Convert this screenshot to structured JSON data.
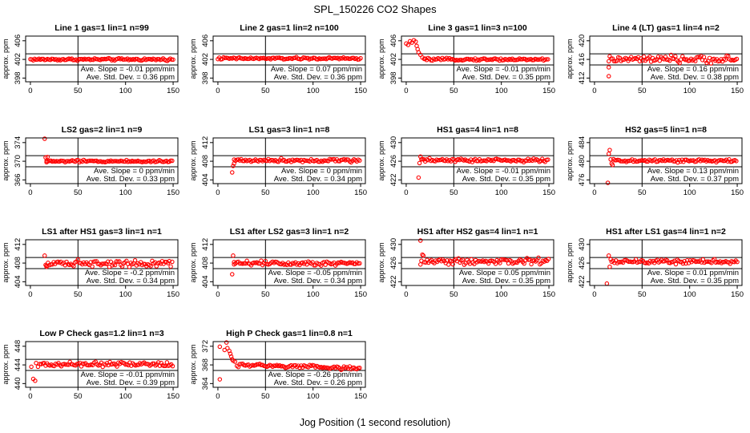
{
  "figure": {
    "title": "SPL_150226  CO2 Shapes",
    "xlabel": "Jog Position (1 second resolution)"
  },
  "colors": {
    "points": "#ff0000",
    "axes": "#000000",
    "background": "#ffffff"
  },
  "chart_data": [
    {
      "type": "scatter",
      "title": "Line 1 gas=1 lin=1 n=99",
      "ylabel": "approx. ppm",
      "xticks": [
        0,
        50,
        100,
        150
      ],
      "yticks": [
        398,
        402,
        406
      ],
      "ylim": [
        397.2,
        407
      ],
      "hlines": [
        403.2,
        400.8
      ],
      "vline": 50,
      "stats": [
        "Ave. Slope = -0.01  ppm/min",
        "Ave. Std. Dev. = 0.36  ppm"
      ],
      "points": {
        "start": 0,
        "end": 150,
        "step": 1.5,
        "base": 402.0,
        "noise": 0.12
      },
      "early": []
    },
    {
      "type": "scatter",
      "title": "Line 2 gas=1 lin=2 n=100",
      "ylabel": "approx. ppm",
      "xticks": [
        0,
        50,
        100,
        150
      ],
      "yticks": [
        398,
        402,
        406
      ],
      "ylim": [
        397.2,
        407
      ],
      "hlines": [
        403.2,
        400.8
      ],
      "vline": 50,
      "stats": [
        "Ave. Slope = 0.07  ppm/min",
        "Ave. Std. Dev. = 0.36  ppm"
      ],
      "points": {
        "start": 0,
        "end": 150,
        "step": 1.5,
        "base": 402.2,
        "noise": 0.12
      },
      "early": []
    },
    {
      "type": "scatter",
      "title": "Line 3 gas=1 lin=3 n=100",
      "ylabel": "approx. ppm",
      "xticks": [
        0,
        50,
        100,
        150
      ],
      "yticks": [
        398,
        402,
        406
      ],
      "ylim": [
        397.2,
        407
      ],
      "hlines": [
        403.2,
        400.8
      ],
      "vline": 50,
      "stats": [
        "Ave. Slope = -0.01  ppm/min",
        "Ave. Std. Dev. = 0.35  ppm"
      ],
      "points": {
        "start": 20,
        "end": 150,
        "step": 1.5,
        "base": 402.0,
        "noise": 0.12
      },
      "early": [
        [
          0,
          405.4
        ],
        [
          2,
          405.1
        ],
        [
          4,
          405.9
        ],
        [
          6,
          405.6
        ],
        [
          8,
          406.1
        ],
        [
          10,
          405.8
        ],
        [
          11,
          404.9
        ],
        [
          12,
          404.2
        ],
        [
          13,
          403.5
        ],
        [
          15,
          403.0
        ],
        [
          17,
          402.4
        ],
        [
          19,
          402.1
        ]
      ]
    },
    {
      "type": "scatter",
      "title": "Line 4 (LT) gas=1 lin=4 n=2",
      "ylabel": "approx. ppm",
      "xticks": [
        0,
        50,
        100,
        150
      ],
      "yticks": [
        412,
        416,
        420
      ],
      "ylim": [
        411.2,
        421
      ],
      "hlines": [
        417.2,
        414.8
      ],
      "vline": 50,
      "stats": [
        "Ave. Slope = 0.16  ppm/min",
        "Ave. Std. Dev. = 0.38  ppm"
      ],
      "points": {
        "start": 16,
        "end": 150,
        "step": 1.5,
        "base": 416.0,
        "noise": 0.35
      },
      "early": [
        [
          15,
          412.4
        ],
        [
          15,
          414.3
        ],
        [
          15,
          415.6
        ]
      ]
    },
    {
      "type": "scatter",
      "title": "LS2 gas=2 lin=1 n=9",
      "ylabel": "approx. ppm",
      "xticks": [
        0,
        50,
        100,
        150
      ],
      "yticks": [
        366,
        370,
        374
      ],
      "ylim": [
        365.2,
        375
      ],
      "hlines": [
        371.2,
        368.8
      ],
      "vline": 50,
      "stats": [
        "Ave. Slope = 0  ppm/min",
        "Ave. Std. Dev. = 0.33  ppm"
      ],
      "points": {
        "start": 17,
        "end": 150,
        "step": 1.5,
        "base": 370.0,
        "noise": 0.12
      },
      "early": [
        [
          15,
          375.0
        ],
        [
          16,
          370.8
        ],
        [
          17,
          369.8
        ],
        [
          18,
          370.9
        ]
      ]
    },
    {
      "type": "scatter",
      "title": "LS1 gas=3 lin=1 n=8",
      "ylabel": "approx. ppm",
      "xticks": [
        0,
        50,
        100,
        150
      ],
      "yticks": [
        404,
        408,
        412
      ],
      "ylim": [
        403.2,
        413
      ],
      "hlines": [
        409.2,
        406.8
      ],
      "vline": 50,
      "stats": [
        "Ave. Slope = 0  ppm/min",
        "Ave. Std. Dev. = 0.34  ppm"
      ],
      "points": {
        "start": 17,
        "end": 150,
        "step": 1.5,
        "base": 408.2,
        "noise": 0.18
      },
      "early": [
        [
          15,
          405.6
        ],
        [
          16,
          407.0
        ],
        [
          17,
          407.5
        ]
      ]
    },
    {
      "type": "scatter",
      "title": "HS1 gas=4 lin=1 n=8",
      "ylabel": "approx. ppm",
      "xticks": [
        0,
        50,
        100,
        150
      ],
      "yticks": [
        422,
        426,
        430
      ],
      "ylim": [
        421.2,
        431
      ],
      "hlines": [
        427.2,
        424.8
      ],
      "vline": 50,
      "stats": [
        "Ave. Slope = -0.01  ppm/min",
        "Ave. Std. Dev. = 0.35  ppm"
      ],
      "points": {
        "start": 17,
        "end": 150,
        "step": 1.5,
        "base": 426.2,
        "noise": 0.18
      },
      "early": [
        [
          13,
          422.5
        ],
        [
          14,
          425.6
        ],
        [
          15,
          427.0
        ],
        [
          16,
          426.4
        ]
      ]
    },
    {
      "type": "scatter",
      "title": "HS2 gas=5 lin=1 n=8",
      "ylabel": "approx. ppm",
      "xticks": [
        0,
        50,
        100,
        150
      ],
      "yticks": [
        476,
        480,
        484
      ],
      "ylim": [
        475.2,
        485
      ],
      "hlines": [
        481.2,
        478.8
      ],
      "vline": 50,
      "stats": [
        "Ave. Slope = 0.13  ppm/min",
        "Ave. Std. Dev. = 0.37  ppm"
      ],
      "points": {
        "start": 20,
        "end": 150,
        "step": 1.5,
        "base": 480.1,
        "noise": 0.18
      },
      "early": [
        [
          14,
          475.1
        ],
        [
          15,
          481.6
        ],
        [
          16,
          482.4
        ],
        [
          17,
          480.4
        ],
        [
          18,
          479.5
        ],
        [
          19,
          479.2
        ]
      ]
    },
    {
      "type": "scatter",
      "title": "LS1 after HS1 gas=3 lin=1 n=1",
      "ylabel": "approx. ppm",
      "xticks": [
        0,
        50,
        100,
        150
      ],
      "yticks": [
        404,
        408,
        412
      ],
      "ylim": [
        403.2,
        413
      ],
      "hlines": [
        409.2,
        406.8
      ],
      "vline": 50,
      "stats": [
        "Ave. Slope = -0.2  ppm/min",
        "Ave. Std. Dev. = 0.34  ppm"
      ],
      "points": {
        "start": 17,
        "end": 150,
        "step": 1.5,
        "base": 408.0,
        "noise": 0.35
      },
      "early": [
        [
          15,
          409.6
        ],
        [
          16,
          407.6
        ],
        [
          17,
          407.2
        ]
      ]
    },
    {
      "type": "scatter",
      "title": "LS1 after LS2 gas=3 lin=1 n=2",
      "ylabel": "approx. ppm",
      "xticks": [
        0,
        50,
        100,
        150
      ],
      "yticks": [
        404,
        408,
        412
      ],
      "ylim": [
        403.2,
        413
      ],
      "hlines": [
        409.2,
        406.8
      ],
      "vline": 50,
      "stats": [
        "Ave. Slope = -0.05  ppm/min",
        "Ave. Std. Dev. = 0.34  ppm"
      ],
      "points": {
        "start": 17,
        "end": 150,
        "step": 1.5,
        "base": 408.0,
        "noise": 0.25
      },
      "early": [
        [
          15,
          405.6
        ],
        [
          16,
          409.6
        ],
        [
          17,
          408.2
        ]
      ]
    },
    {
      "type": "scatter",
      "title": "HS1 after HS2 gas=4 lin=1 n=1",
      "ylabel": "approx. ppm",
      "xticks": [
        0,
        50,
        100,
        150
      ],
      "yticks": [
        422,
        426,
        430
      ],
      "ylim": [
        421.2,
        431
      ],
      "hlines": [
        427.2,
        424.8
      ],
      "vline": 50,
      "stats": [
        "Ave. Slope = 0.05  ppm/min",
        "Ave. Std. Dev. = 0.35  ppm"
      ],
      "points": {
        "start": 19,
        "end": 150,
        "step": 1.5,
        "base": 426.4,
        "noise": 0.35
      },
      "early": [
        [
          15,
          431.0
        ],
        [
          15,
          425.7
        ],
        [
          16,
          426.5
        ],
        [
          17,
          427.8
        ],
        [
          18,
          427.6
        ]
      ]
    },
    {
      "type": "scatter",
      "title": "HS1 after LS1 gas=4 lin=1 n=2",
      "ylabel": "approx. ppm",
      "xticks": [
        0,
        50,
        100,
        150
      ],
      "yticks": [
        422,
        426,
        430
      ],
      "ylim": [
        421.2,
        431
      ],
      "hlines": [
        427.2,
        424.8
      ],
      "vline": 50,
      "stats": [
        "Ave. Slope = 0.01  ppm/min",
        "Ave. Std. Dev. = 0.35  ppm"
      ],
      "points": {
        "start": 18,
        "end": 150,
        "step": 1.5,
        "base": 426.3,
        "noise": 0.22
      },
      "early": [
        [
          13,
          421.6
        ],
        [
          15,
          427.6
        ],
        [
          16,
          425.2
        ],
        [
          17,
          426.8
        ]
      ]
    },
    {
      "type": "scatter",
      "title": "Low P Check gas=1.2 lin=1 n=3",
      "ylabel": "approx. ppm",
      "xticks": [
        0,
        50,
        100,
        150
      ],
      "yticks": [
        440,
        444,
        448
      ],
      "ylim": [
        439.2,
        449
      ],
      "hlines": [
        445.2,
        442.8
      ],
      "vline": 50,
      "stats": [
        "Ave. Slope = -0.01  ppm/min",
        "Ave. Std. Dev. = 0.39  ppm"
      ],
      "points": {
        "start": 10,
        "end": 150,
        "step": 1.5,
        "base": 444.1,
        "noise": 0.25
      },
      "early": [
        [
          1,
          443.6
        ],
        [
          3,
          441.0
        ],
        [
          5,
          440.6
        ],
        [
          6,
          444.4
        ],
        [
          8,
          443.6
        ]
      ]
    },
    {
      "type": "scatter",
      "title": "High P Check gas=1 lin=0.8 n=1",
      "ylabel": "approx. ppm",
      "xticks": [
        0,
        50,
        100,
        150
      ],
      "yticks": [
        364,
        368,
        372
      ],
      "ylim": [
        363.2,
        373
      ],
      "hlines": [
        369.2,
        366.8
      ],
      "vline": 50,
      "stats": [
        "Ave. Slope = -0.26  ppm/min",
        "Ave. Std. Dev. = 0.26  ppm"
      ],
      "points": {
        "start": 20,
        "end": 150,
        "step": 1.5,
        "base": 368.0,
        "noise": 0.2,
        "drift": -0.006
      },
      "early": [
        [
          2,
          371.9
        ],
        [
          2,
          364.9
        ],
        [
          7,
          371.2
        ],
        [
          9,
          372.8
        ],
        [
          10,
          371.6
        ],
        [
          12,
          371.0
        ],
        [
          13,
          370.4
        ],
        [
          14,
          369.8
        ],
        [
          15,
          369.2
        ],
        [
          16,
          368.9
        ],
        [
          18,
          368.7
        ]
      ]
    }
  ]
}
